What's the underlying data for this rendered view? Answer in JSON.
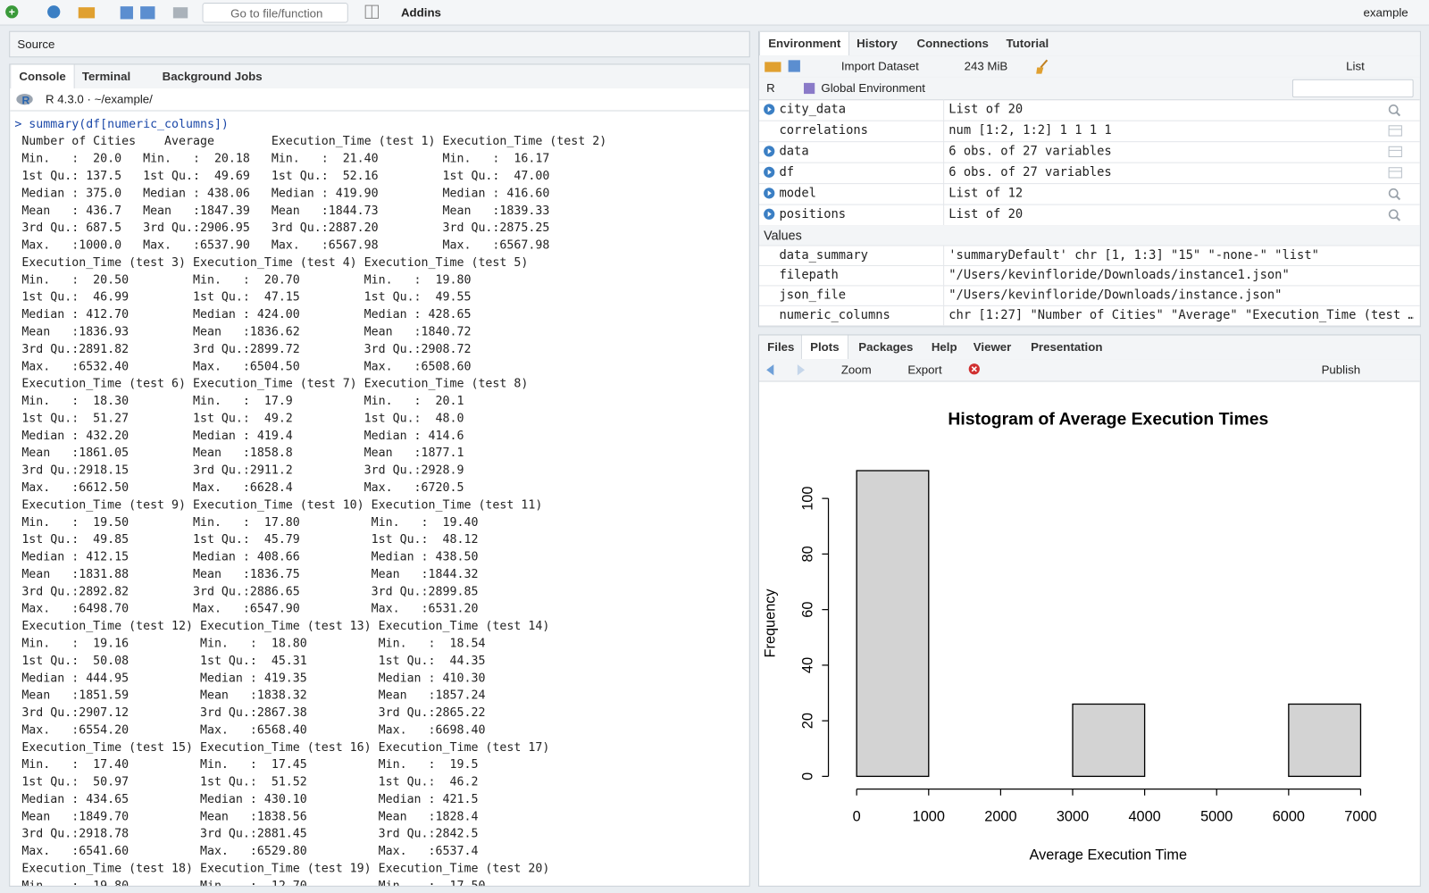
{
  "toolbar": {
    "go_to_file": "Go to file/function",
    "addins": "Addins",
    "project": "example"
  },
  "source_pane": {
    "title": "Source"
  },
  "console_pane": {
    "tabs": [
      "Console",
      "Terminal",
      "Background Jobs"
    ],
    "path": "R 4.3.0 · ~/example/",
    "command": "> summary(df[numeric_columns])",
    "output": [
      " Number of Cities    Average        Execution_Time (test 1) Execution_Time (test 2)",
      " Min.   :  20.0   Min.   :  20.18   Min.   :  21.40         Min.   :  16.17",
      " 1st Qu.: 137.5   1st Qu.:  49.69   1st Qu.:  52.16         1st Qu.:  47.00",
      " Median : 375.0   Median : 438.06   Median : 419.90         Median : 416.60",
      " Mean   : 436.7   Mean   :1847.39   Mean   :1844.73         Mean   :1839.33",
      " 3rd Qu.: 687.5   3rd Qu.:2906.95   3rd Qu.:2887.20         3rd Qu.:2875.25",
      " Max.   :1000.0   Max.   :6537.90   Max.   :6567.98         Max.   :6567.98",
      " Execution_Time (test 3) Execution_Time (test 4) Execution_Time (test 5)",
      " Min.   :  20.50         Min.   :  20.70         Min.   :  19.80",
      " 1st Qu.:  46.99         1st Qu.:  47.15         1st Qu.:  49.55",
      " Median : 412.70         Median : 424.00         Median : 428.65",
      " Mean   :1836.93         Mean   :1836.62         Mean   :1840.72",
      " 3rd Qu.:2891.82         3rd Qu.:2899.72         3rd Qu.:2908.72",
      " Max.   :6532.40         Max.   :6504.50         Max.   :6508.60",
      " Execution_Time (test 6) Execution_Time (test 7) Execution_Time (test 8)",
      " Min.   :  18.30         Min.   :  17.9          Min.   :  20.1",
      " 1st Qu.:  51.27         1st Qu.:  49.2          1st Qu.:  48.0",
      " Median : 432.20         Median : 419.4          Median : 414.6",
      " Mean   :1861.05         Mean   :1858.8          Mean   :1877.1",
      " 3rd Qu.:2918.15         3rd Qu.:2911.2          3rd Qu.:2928.9",
      " Max.   :6612.50         Max.   :6628.4          Max.   :6720.5",
      " Execution_Time (test 9) Execution_Time (test 10) Execution_Time (test 11)",
      " Min.   :  19.50         Min.   :  17.80          Min.   :  19.40",
      " 1st Qu.:  49.85         1st Qu.:  45.79          1st Qu.:  48.12",
      " Median : 412.15         Median : 408.66          Median : 438.50",
      " Mean   :1831.88         Mean   :1836.75          Mean   :1844.32",
      " 3rd Qu.:2892.82         3rd Qu.:2886.65          3rd Qu.:2899.85",
      " Max.   :6498.70         Max.   :6547.90          Max.   :6531.20",
      " Execution_Time (test 12) Execution_Time (test 13) Execution_Time (test 14)",
      " Min.   :  19.16          Min.   :  18.80          Min.   :  18.54",
      " 1st Qu.:  50.08          1st Qu.:  45.31          1st Qu.:  44.35",
      " Median : 444.95          Median : 419.35          Median : 410.30",
      " Mean   :1851.59          Mean   :1838.32          Mean   :1857.24",
      " 3rd Qu.:2907.12          3rd Qu.:2867.38          3rd Qu.:2865.22",
      " Max.   :6554.20          Max.   :6568.40          Max.   :6698.40",
      " Execution_Time (test 15) Execution_Time (test 16) Execution_Time (test 17)",
      " Min.   :  17.40          Min.   :  17.45          Min.   :  19.5",
      " 1st Qu.:  50.97          1st Qu.:  51.52          1st Qu.:  46.2",
      " Median : 434.65          Median : 430.10          Median : 421.5",
      " Mean   :1849.70          Mean   :1838.56          Mean   :1828.4",
      " 3rd Qu.:2918.78          3rd Qu.:2881.45          3rd Qu.:2842.5",
      " Max.   :6541.60          Max.   :6529.80          Max.   :6537.4",
      " Execution_Time (test 18) Execution_Time (test 19) Execution_Time (test 20)",
      " Min.   :  19.80          Min.   :  12.70          Min.   :  17.50"
    ]
  },
  "environment_pane": {
    "tabs": [
      "Environment",
      "History",
      "Connections",
      "Tutorial"
    ],
    "import_dataset": "Import Dataset",
    "memory": "243 MiB",
    "view": "List",
    "language": "R",
    "scope": "Global Environment",
    "data": [
      {
        "name": "city_data",
        "value": "List of  20"
      },
      {
        "name": "correlations",
        "value": "num [1:2, 1:2] 1 1 1 1"
      },
      {
        "name": "data",
        "value": "6 obs. of 27 variables"
      },
      {
        "name": "df",
        "value": "6 obs. of 27 variables"
      },
      {
        "name": "model",
        "value": "List of  12"
      },
      {
        "name": "positions",
        "value": "List of  20"
      }
    ],
    "values_header": "Values",
    "values": [
      {
        "name": "data_summary",
        "value": "'summaryDefault' chr [1, 1:3] \"15\" \"-none-\" \"list\""
      },
      {
        "name": "filepath",
        "value": "\"/Users/kevinfloride/Downloads/instance1.json\""
      },
      {
        "name": "json_file",
        "value": "\"/Users/kevinfloride/Downloads/instance.json\""
      },
      {
        "name": "numeric_columns",
        "value": "chr [1:27] \"Number of Cities\" \"Average\" \"Execution_Time (test …"
      }
    ]
  },
  "plots_pane": {
    "tabs": [
      "Files",
      "Plots",
      "Packages",
      "Help",
      "Viewer",
      "Presentation"
    ],
    "zoom": "Zoom",
    "export": "Export",
    "publish": "Publish"
  },
  "chart_data": {
    "type": "histogram",
    "title": "Histogram of Average Execution Times",
    "x_label": "Average Execution Time",
    "y_label": "Frequency",
    "bins": [
      0,
      1000,
      2000,
      3000,
      4000,
      5000,
      6000,
      7000
    ],
    "values": [
      110,
      0,
      0,
      26,
      0,
      0,
      26
    ],
    "color": "#d3d3d3",
    "xlim": [
      0,
      7000
    ],
    "xticks": [
      0,
      1000,
      2000,
      3000,
      4000,
      5000,
      6000,
      7000
    ],
    "ylim": [
      0,
      110
    ],
    "yticks": [
      0,
      20,
      40,
      60,
      80,
      100
    ]
  }
}
